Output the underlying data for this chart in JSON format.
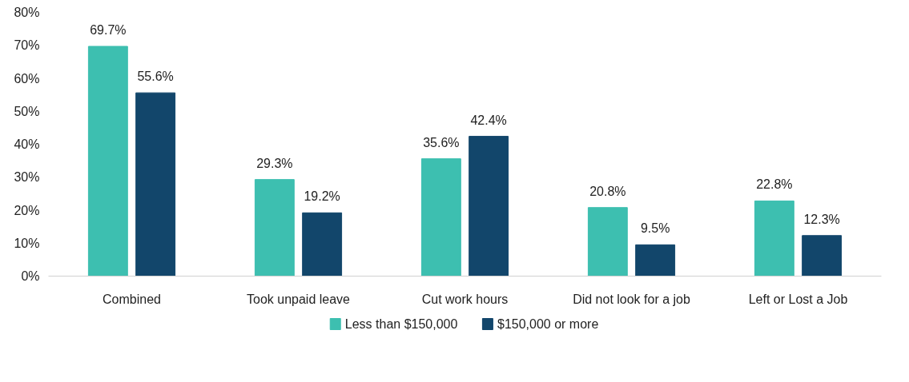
{
  "chart_data": {
    "type": "bar",
    "categories": [
      "Combined",
      "Took unpaid leave",
      "Cut work hours",
      "Did not look for a job",
      "Left or Lost a Job"
    ],
    "series": [
      {
        "name": "Less than $150,000",
        "color": "#3dbfb0",
        "values": [
          69.7,
          29.3,
          35.6,
          20.8,
          22.8
        ],
        "value_labels": [
          "69.7%",
          "29.3%",
          "35.6%",
          "20.8%",
          "22.8%"
        ]
      },
      {
        "name": "$150,000 or more",
        "color": "#12466b",
        "values": [
          55.6,
          19.2,
          42.4,
          9.5,
          12.3
        ],
        "value_labels": [
          "55.6%",
          "19.2%",
          "42.4%",
          "9.5%",
          "12.3%"
        ]
      }
    ],
    "ylim": [
      0,
      80
    ],
    "yticks": [
      {
        "value": 0,
        "label": "0%"
      },
      {
        "value": 10,
        "label": "10%"
      },
      {
        "value": 20,
        "label": "20%"
      },
      {
        "value": 30,
        "label": "30%"
      },
      {
        "value": 40,
        "label": "40%"
      },
      {
        "value": 50,
        "label": "50%"
      },
      {
        "value": 60,
        "label": "60%"
      },
      {
        "value": 70,
        "label": "70%"
      },
      {
        "value": 80,
        "label": "80%"
      }
    ],
    "grid": false,
    "legend": "bottom"
  }
}
